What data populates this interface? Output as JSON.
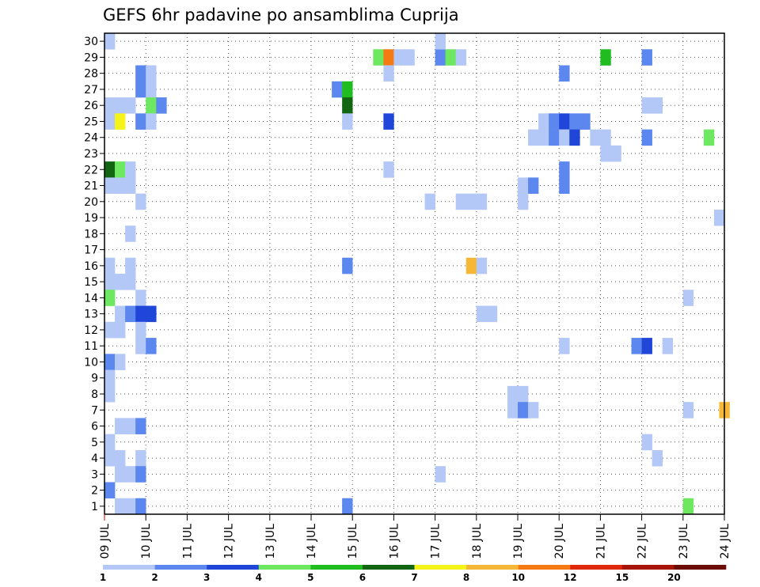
{
  "chart_data": {
    "type": "heatmap",
    "title": "GEFS 6hr padavine po ansamblima Cuprija",
    "xlabel": "",
    "ylabel": "",
    "x_ticks": [
      "09 JUL",
      "10 JUL",
      "11 JUL",
      "12 JUL",
      "13 JUL",
      "14 JUL",
      "15 JUL",
      "16 JUL",
      "17 JUL",
      "18 JUL",
      "19 JUL",
      "20 JUL",
      "21 JUL",
      "22 JUL",
      "23 JUL",
      "24 JUL"
    ],
    "y_ticks": [
      "1",
      "2",
      "3",
      "4",
      "5",
      "6",
      "7",
      "8",
      "9",
      "10",
      "11",
      "12",
      "13",
      "14",
      "15",
      "16",
      "17",
      "18",
      "19",
      "20",
      "21",
      "22",
      "23",
      "24",
      "25",
      "26",
      "27",
      "28",
      "29",
      "30"
    ],
    "xlim": [
      0,
      60
    ],
    "ylim": [
      0,
      30
    ],
    "grid": true,
    "legend": {
      "placement": "bottom",
      "labels": [
        "1",
        "2",
        "3",
        "4",
        "5",
        "6",
        "7",
        "8",
        "10",
        "12",
        "15",
        "20"
      ],
      "colors": [
        "#b4c8f8",
        "#5b87ee",
        "#1f46d8",
        "#6ee860",
        "#1fbd1f",
        "#126612",
        "#f4f41a",
        "#f6b636",
        "#f57a14",
        "#e0280c",
        "#a81408",
        "#6b0c06"
      ]
    },
    "levels": [
      1,
      2,
      3,
      4,
      5,
      6,
      7,
      8,
      10,
      12,
      15,
      20
    ],
    "cells": [
      {
        "t": 0,
        "m": 30,
        "v": 1.5
      },
      {
        "t": 26,
        "m": 29,
        "v": 4.5
      },
      {
        "t": 27,
        "m": 29,
        "v": 10.5
      },
      {
        "t": 28,
        "m": 29,
        "v": 1.5
      },
      {
        "t": 29,
        "m": 29,
        "v": 1.5
      },
      {
        "t": 32,
        "m": 29,
        "v": 2.5
      },
      {
        "t": 33,
        "m": 29,
        "v": 4.5
      },
      {
        "t": 34,
        "m": 29,
        "v": 1.5
      },
      {
        "t": 48,
        "m": 29,
        "v": 5.5
      },
      {
        "t": 52,
        "m": 29,
        "v": 2.5
      },
      {
        "t": 32,
        "m": 30,
        "v": 1.5
      },
      {
        "t": 3,
        "m": 28,
        "v": 2.5
      },
      {
        "t": 4,
        "m": 28,
        "v": 1.5
      },
      {
        "t": 27,
        "m": 28,
        "v": 1.5
      },
      {
        "t": 44,
        "m": 28,
        "v": 2.5
      },
      {
        "t": 3,
        "m": 27,
        "v": 2.5
      },
      {
        "t": 4,
        "m": 27,
        "v": 1.5
      },
      {
        "t": 22,
        "m": 27,
        "v": 2.5
      },
      {
        "t": 23,
        "m": 27,
        "v": 5.5
      },
      {
        "t": 0,
        "m": 26,
        "v": 1.5
      },
      {
        "t": 1,
        "m": 26,
        "v": 1.5
      },
      {
        "t": 2,
        "m": 26,
        "v": 1.5
      },
      {
        "t": 4,
        "m": 26,
        "v": 4.5
      },
      {
        "t": 5,
        "m": 26,
        "v": 2.5
      },
      {
        "t": 23,
        "m": 26,
        "v": 6.5
      },
      {
        "t": 52,
        "m": 26,
        "v": 1.5
      },
      {
        "t": 53,
        "m": 26,
        "v": 1.5
      },
      {
        "t": 0,
        "m": 25,
        "v": 1.5
      },
      {
        "t": 1,
        "m": 25,
        "v": 7.5
      },
      {
        "t": 3,
        "m": 25,
        "v": 2.5
      },
      {
        "t": 4,
        "m": 25,
        "v": 1.5
      },
      {
        "t": 23,
        "m": 25,
        "v": 1.5
      },
      {
        "t": 27,
        "m": 25,
        "v": 3.5
      },
      {
        "t": 42,
        "m": 25,
        "v": 1.5
      },
      {
        "t": 43,
        "m": 25,
        "v": 2.5
      },
      {
        "t": 44,
        "m": 25,
        "v": 3.5
      },
      {
        "t": 45,
        "m": 25,
        "v": 2.5
      },
      {
        "t": 46,
        "m": 25,
        "v": 2.5
      },
      {
        "t": 41,
        "m": 24,
        "v": 1.5
      },
      {
        "t": 42,
        "m": 24,
        "v": 1.5
      },
      {
        "t": 43,
        "m": 24,
        "v": 2.5
      },
      {
        "t": 44,
        "m": 24,
        "v": 1.5
      },
      {
        "t": 45,
        "m": 24,
        "v": 3.5
      },
      {
        "t": 47,
        "m": 24,
        "v": 1.5
      },
      {
        "t": 48,
        "m": 24,
        "v": 1.5
      },
      {
        "t": 52,
        "m": 24,
        "v": 2.5
      },
      {
        "t": 58,
        "m": 24,
        "v": 4.5
      },
      {
        "t": 48,
        "m": 23,
        "v": 1.5
      },
      {
        "t": 49,
        "m": 23,
        "v": 1.5
      },
      {
        "t": 0,
        "m": 22,
        "v": 6.5
      },
      {
        "t": 1,
        "m": 22,
        "v": 4.5
      },
      {
        "t": 2,
        "m": 22,
        "v": 1.5
      },
      {
        "t": 27,
        "m": 22,
        "v": 1.5
      },
      {
        "t": 44,
        "m": 22,
        "v": 2.5
      },
      {
        "t": 0,
        "m": 21,
        "v": 1.5
      },
      {
        "t": 1,
        "m": 21,
        "v": 1.5
      },
      {
        "t": 2,
        "m": 21,
        "v": 1.5
      },
      {
        "t": 40,
        "m": 21,
        "v": 1.5
      },
      {
        "t": 41,
        "m": 21,
        "v": 2.5
      },
      {
        "t": 44,
        "m": 21,
        "v": 2.5
      },
      {
        "t": 3,
        "m": 20,
        "v": 1.5
      },
      {
        "t": 31,
        "m": 20,
        "v": 1.5
      },
      {
        "t": 34,
        "m": 20,
        "v": 1.5
      },
      {
        "t": 35,
        "m": 20,
        "v": 1.5
      },
      {
        "t": 36,
        "m": 20,
        "v": 1.5
      },
      {
        "t": 40,
        "m": 20,
        "v": 1.5
      },
      {
        "t": 59,
        "m": 19,
        "v": 1.5
      },
      {
        "t": 2,
        "m": 18,
        "v": 1.5
      },
      {
        "t": 0,
        "m": 16,
        "v": 1.5
      },
      {
        "t": 2,
        "m": 16,
        "v": 1.5
      },
      {
        "t": 23,
        "m": 16,
        "v": 2.5
      },
      {
        "t": 35,
        "m": 16,
        "v": 8.5
      },
      {
        "t": 36,
        "m": 16,
        "v": 1.5
      },
      {
        "t": 0,
        "m": 15,
        "v": 1.5
      },
      {
        "t": 1,
        "m": 15,
        "v": 1.5
      },
      {
        "t": 2,
        "m": 15,
        "v": 1.5
      },
      {
        "t": 0,
        "m": 14,
        "v": 4.5
      },
      {
        "t": 3,
        "m": 14,
        "v": 1.5
      },
      {
        "t": 56,
        "m": 14,
        "v": 1.5
      },
      {
        "t": 1,
        "m": 13,
        "v": 1.5
      },
      {
        "t": 2,
        "m": 13,
        "v": 2.5
      },
      {
        "t": 3,
        "m": 13,
        "v": 3.5
      },
      {
        "t": 4,
        "m": 13,
        "v": 3.5
      },
      {
        "t": 36,
        "m": 13,
        "v": 1.5
      },
      {
        "t": 37,
        "m": 13,
        "v": 1.5
      },
      {
        "t": 0,
        "m": 12,
        "v": 1.5
      },
      {
        "t": 1,
        "m": 12,
        "v": 1.5
      },
      {
        "t": 3,
        "m": 12,
        "v": 1.5
      },
      {
        "t": 3,
        "m": 11,
        "v": 1.5
      },
      {
        "t": 4,
        "m": 11,
        "v": 2.5
      },
      {
        "t": 44,
        "m": 11,
        "v": 1.5
      },
      {
        "t": 51,
        "m": 11,
        "v": 2.5
      },
      {
        "t": 52,
        "m": 11,
        "v": 3.5
      },
      {
        "t": 54,
        "m": 11,
        "v": 1.5
      },
      {
        "t": 0,
        "m": 10,
        "v": 2.5
      },
      {
        "t": 1,
        "m": 10,
        "v": 1.5
      },
      {
        "t": 0,
        "m": 9,
        "v": 1.5
      },
      {
        "t": 0,
        "m": 8,
        "v": 1.5
      },
      {
        "t": 39,
        "m": 8,
        "v": 1.5
      },
      {
        "t": 40,
        "m": 8,
        "v": 1.5
      },
      {
        "t": 39,
        "m": 7,
        "v": 1.5
      },
      {
        "t": 40,
        "m": 7,
        "v": 2.5
      },
      {
        "t": 41,
        "m": 7,
        "v": 1.5
      },
      {
        "t": 56,
        "m": 7,
        "v": 1.5
      },
      {
        "t": 59.5,
        "m": 7,
        "v": 8.5
      },
      {
        "t": 1,
        "m": 6,
        "v": 1.5
      },
      {
        "t": 2,
        "m": 6,
        "v": 1.5
      },
      {
        "t": 3,
        "m": 6,
        "v": 2.5
      },
      {
        "t": 0,
        "m": 5,
        "v": 1.5
      },
      {
        "t": 52,
        "m": 5,
        "v": 1.5
      },
      {
        "t": 0,
        "m": 4,
        "v": 1.5
      },
      {
        "t": 1,
        "m": 4,
        "v": 1.5
      },
      {
        "t": 3,
        "m": 4,
        "v": 1.5
      },
      {
        "t": 53,
        "m": 4,
        "v": 1.5
      },
      {
        "t": 1,
        "m": 3,
        "v": 1.5
      },
      {
        "t": 2,
        "m": 3,
        "v": 1.5
      },
      {
        "t": 3,
        "m": 3,
        "v": 2.5
      },
      {
        "t": 32,
        "m": 3,
        "v": 1.5
      },
      {
        "t": 0,
        "m": 2,
        "v": 2.5
      },
      {
        "t": 1,
        "m": 1,
        "v": 1.5
      },
      {
        "t": 2,
        "m": 1,
        "v": 1.5
      },
      {
        "t": 3,
        "m": 1,
        "v": 2.5
      },
      {
        "t": 23,
        "m": 1,
        "v": 2.5
      },
      {
        "t": 56,
        "m": 1,
        "v": 4.5
      }
    ]
  }
}
